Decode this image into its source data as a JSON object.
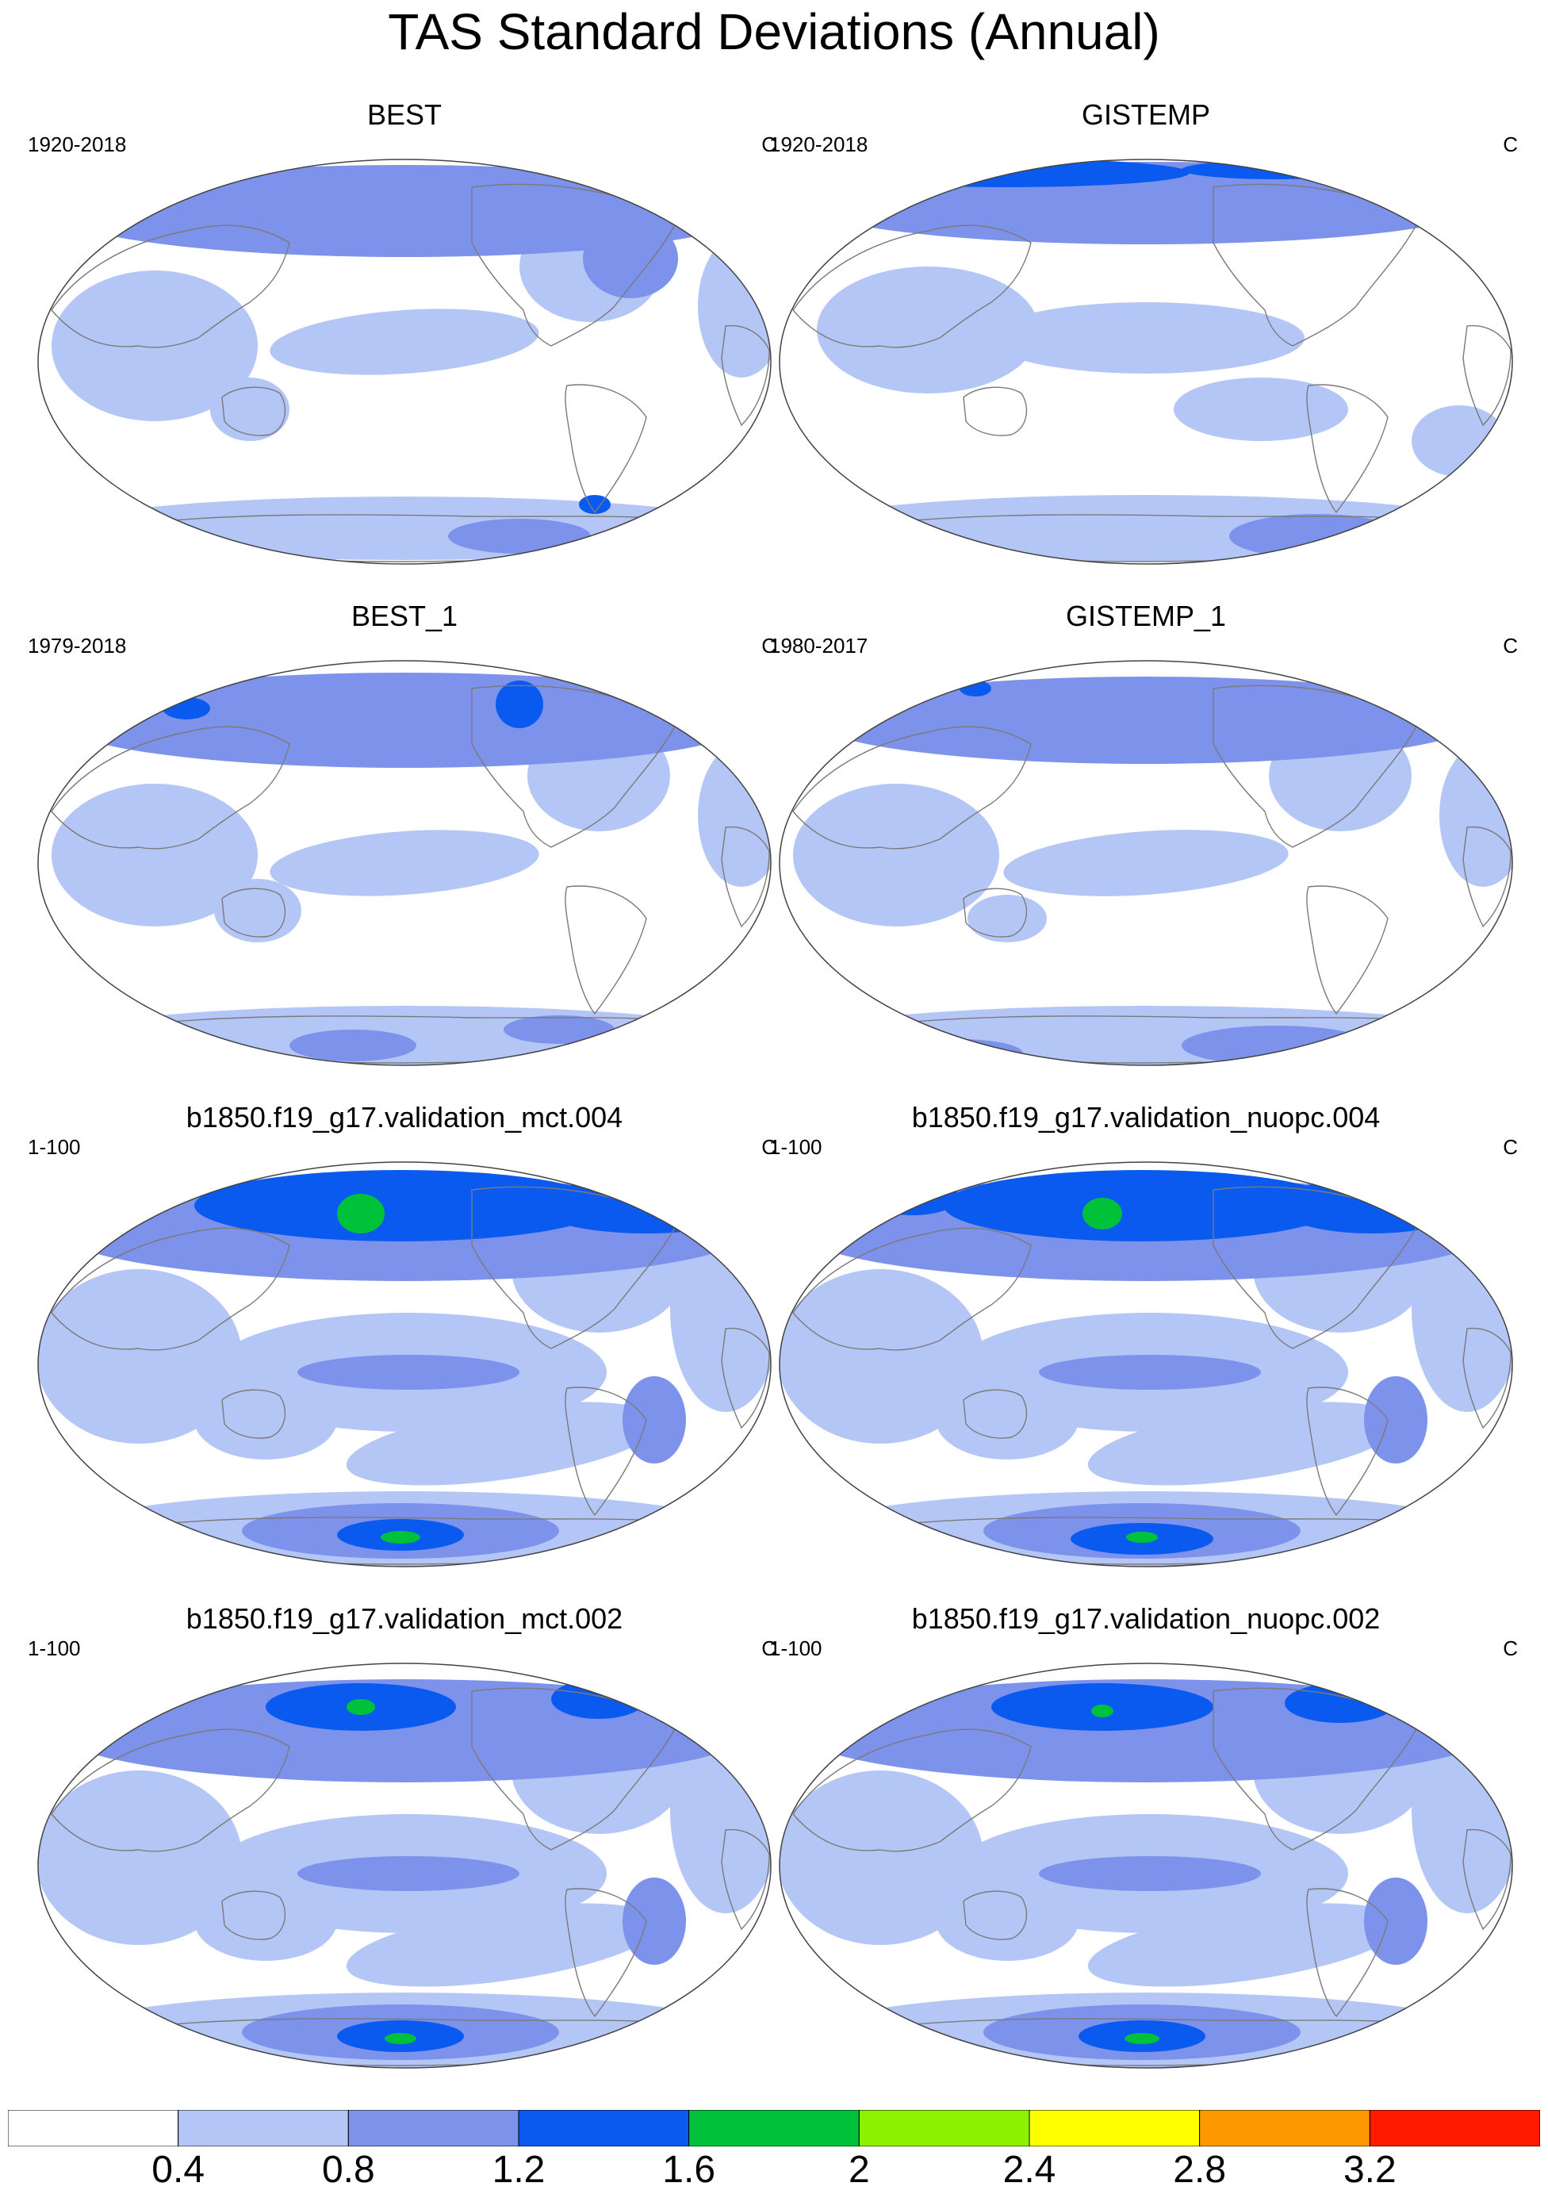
{
  "title": "TAS Standard Deviations (Annual)",
  "units": "C",
  "panels": [
    {
      "title": "BEST",
      "period": "1920-2018",
      "units": "C"
    },
    {
      "title": "GISTEMP",
      "period": "1920-2018",
      "units": "C"
    },
    {
      "title": "BEST_1",
      "period": "1979-2018",
      "units": "C"
    },
    {
      "title": "GISTEMP_1",
      "period": "1980-2017",
      "units": "C"
    },
    {
      "title": "b1850.f19_g17.validation_mct.004",
      "period": "1-100",
      "units": "C"
    },
    {
      "title": "b1850.f19_g17.validation_nuopc.004",
      "period": "1-100",
      "units": "C"
    },
    {
      "title": "b1850.f19_g17.validation_mct.002",
      "period": "1-100",
      "units": "C"
    },
    {
      "title": "b1850.f19_g17.validation_nuopc.002",
      "period": "1-100",
      "units": "C"
    }
  ],
  "colorbar": {
    "levels": [
      "0.4",
      "0.8",
      "1.2",
      "1.6",
      "2",
      "2.4",
      "2.8",
      "3.2"
    ],
    "colors": [
      "#ffffff",
      "#b4c6f5",
      "#7d92ea",
      "#0a5af0",
      "#00c23a",
      "#8cf200",
      "#ffff00",
      "#ff9900",
      "#ff1a00"
    ]
  },
  "chart_data": {
    "type": "map",
    "projection": "Robinson",
    "variable": "TAS standard deviation",
    "contour_levels": [
      0.4,
      0.8,
      1.2,
      1.6,
      2.0,
      2.4,
      2.8,
      3.2
    ]
  }
}
